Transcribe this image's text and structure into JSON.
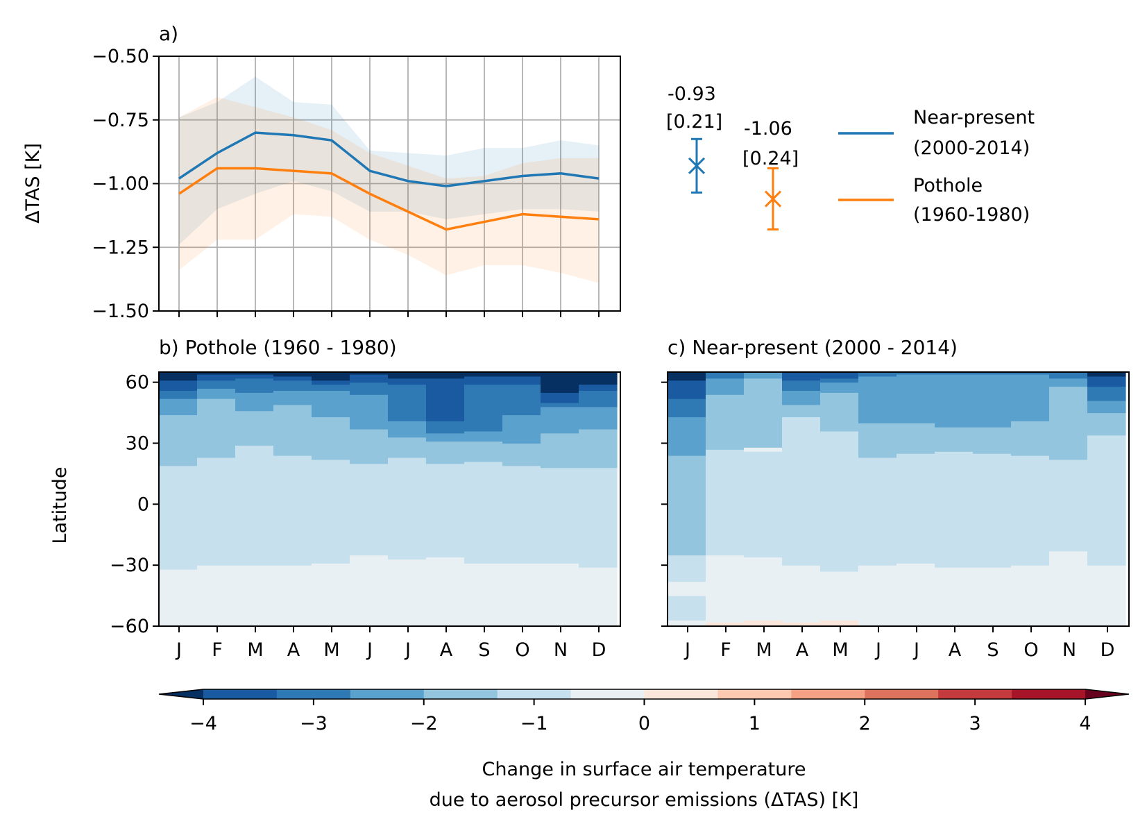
{
  "chart_data": [
    {
      "panel": "a)",
      "type": "line",
      "title": "a)",
      "xlabel": "",
      "ylabel": "ΔTAS [K]",
      "ylim": [
        -1.5,
        -0.5
      ],
      "yticks": [
        -0.5,
        -0.75,
        -1.0,
        -1.25,
        -1.5
      ],
      "ytick_labels": [
        "−0.50",
        "−0.75",
        "−1.00",
        "−1.25",
        "−1.50"
      ],
      "categories": [
        "J",
        "F",
        "M",
        "A",
        "M",
        "J",
        "J",
        "A",
        "S",
        "O",
        "N",
        "D"
      ],
      "show_xtick_labels": false,
      "grid": true,
      "series": [
        {
          "name": "Near-present\n(2000-2014)",
          "legend_lines": [
            "Near-present",
            "(2000-2014)"
          ],
          "color": "#1f77b4",
          "values": [
            -0.98,
            -0.88,
            -0.8,
            -0.81,
            -0.83,
            -0.95,
            -0.99,
            -1.01,
            -0.99,
            -0.97,
            -0.96,
            -0.98
          ],
          "upper": [
            -0.74,
            -0.68,
            -0.58,
            -0.68,
            -0.69,
            -0.87,
            -0.88,
            -0.89,
            -0.86,
            -0.86,
            -0.83,
            -0.85
          ],
          "lower": [
            -1.24,
            -1.1,
            -1.04,
            -0.99,
            -1.03,
            -1.11,
            -1.11,
            -1.14,
            -1.12,
            -1.1,
            -1.1,
            -1.11
          ],
          "mean_label": "-0.93",
          "spread_label": "[0.21]",
          "mean": -0.93,
          "spread": 0.21
        },
        {
          "name": "Pothole\n(1960-1980)",
          "legend_lines": [
            "Pothole",
            "(1960-1980)"
          ],
          "color": "#ff7f0e",
          "values": [
            -1.04,
            -0.94,
            -0.94,
            -0.95,
            -0.96,
            -1.04,
            -1.11,
            -1.18,
            -1.15,
            -1.12,
            -1.13,
            -1.14
          ],
          "upper": [
            -0.74,
            -0.66,
            -0.7,
            -0.74,
            -0.79,
            -0.88,
            -0.93,
            -0.98,
            -0.97,
            -0.92,
            -0.9,
            -0.9
          ],
          "lower": [
            -1.34,
            -1.22,
            -1.22,
            -1.12,
            -1.13,
            -1.22,
            -1.28,
            -1.36,
            -1.32,
            -1.32,
            -1.35,
            -1.39
          ],
          "mean_label": "-1.06",
          "spread_label": "[0.24]",
          "mean": -1.06,
          "spread": 0.24
        }
      ]
    },
    {
      "panel": "b)",
      "type": "heatmap",
      "title": "b) Pothole (1960 - 1980)",
      "xlabel": "",
      "ylabel": "Latitude",
      "ylim": [
        -60,
        65
      ],
      "yticks": [
        60,
        30,
        0,
        -30,
        -60
      ],
      "ytick_labels": [
        "60",
        "30",
        "0",
        "−30",
        "−60"
      ],
      "categories": [
        "J",
        "F",
        "M",
        "A",
        "M",
        "J",
        "J",
        "A",
        "S",
        "O",
        "N",
        "D"
      ],
      "boundaries_by_month": [
        [
          -32,
          19,
          44,
          52,
          56,
          61
        ],
        [
          -30,
          23,
          52,
          57,
          61,
          64
        ],
        [
          -30,
          29,
          46,
          55,
          62,
          64
        ],
        [
          -30,
          24,
          49,
          56,
          61,
          63
        ],
        [
          -29,
          22,
          43,
          56,
          59,
          61
        ],
        [
          -25,
          20,
          37,
          54,
          60,
          64
        ],
        [
          -27,
          23,
          33,
          41,
          59,
          62
        ],
        [
          -26,
          20,
          31,
          35,
          41,
          62
        ],
        [
          -29,
          21,
          31,
          36,
          59,
          63
        ],
        [
          -29,
          19,
          30,
          44,
          59,
          63
        ],
        [
          -29,
          18,
          35,
          48,
          50,
          55,
          60
        ],
        [
          -31,
          18,
          37,
          48,
          56,
          59,
          63
        ]
      ],
      "bottom_level_value": -0.3
    },
    {
      "panel": "c)",
      "type": "heatmap",
      "title": "c) Near-present (2000 - 2014)",
      "xlabel": "",
      "ylabel": "",
      "ylim": [
        -60,
        65
      ],
      "categories": [
        "J",
        "F",
        "M",
        "A",
        "M",
        "J",
        "J",
        "A",
        "S",
        "O",
        "N",
        "D"
      ],
      "boundaries_by_month": [
        [
          -60,
          -57,
          -45,
          -38,
          -25,
          24,
          43,
          52,
          61
        ],
        [
          -58,
          -25,
          27,
          54,
          62
        ],
        [
          -57,
          -26,
          26,
          28,
          62
        ],
        [
          -58,
          -30,
          43,
          49,
          56,
          61
        ],
        [
          -57,
          -33,
          36,
          55,
          60,
          62
        ],
        [
          -30,
          23,
          40,
          63
        ],
        [
          -29,
          25,
          40,
          64
        ],
        [
          -31,
          26,
          38,
          64
        ],
        [
          -31,
          25,
          38,
          64
        ],
        [
          -30,
          24,
          41,
          64
        ],
        [
          -23,
          22,
          58,
          62
        ],
        [
          -30,
          34,
          45,
          51,
          58,
          63
        ]
      ],
      "notes": "boundaries are latitudes (degrees) of colour-level changes, listed from south to north"
    },
    {
      "panel": "colorbar",
      "type": "colorbar",
      "label_lines": [
        "Change in surface air temperature",
        "due to aerosol precursor emissions (ΔTAS) [K]"
      ],
      "range": [
        -4,
        4
      ],
      "ticks": [
        -4,
        -3,
        -2,
        -1,
        0,
        1,
        2,
        3,
        4
      ],
      "tick_labels": [
        "−4",
        "−3",
        "−2",
        "−1",
        "0",
        "1",
        "2",
        "3",
        "4"
      ],
      "extend": "both",
      "colors": [
        "#053061",
        "#1a5aa0",
        "#2f79b5",
        "#5aa2cd",
        "#94c5df",
        "#c6e0ee",
        "#e9f0f4",
        "#fbe6dc",
        "#fdc9b1",
        "#f4a283",
        "#de735d",
        "#c33b3c",
        "#a51429",
        "#67001f"
      ]
    }
  ]
}
